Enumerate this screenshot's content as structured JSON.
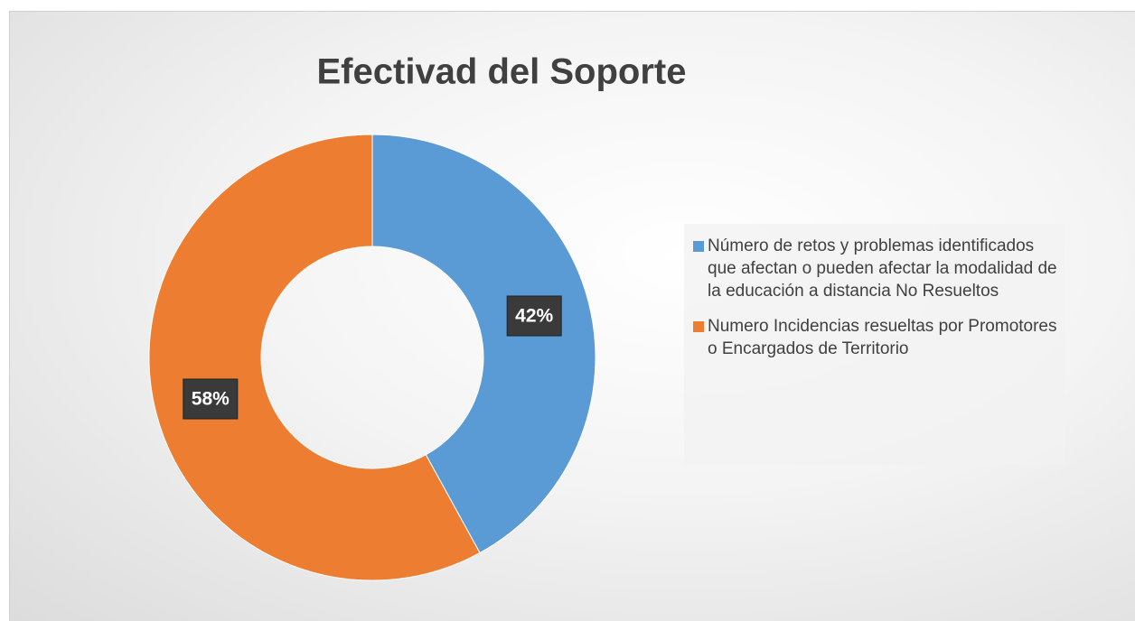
{
  "chart_data": {
    "type": "donut",
    "title": "Efectivad del Soporte",
    "categories": [
      "Número de retos y problemas identificados que afectan o pueden afectar la modalidad de la educación a distancia No Resueltos",
      "Numero Incidencias resueltas por Promotores o Encargados de Territorio"
    ],
    "values": [
      42,
      58
    ],
    "value_labels": [
      "42%",
      "58%"
    ],
    "colors": [
      "#5b9bd5",
      "#ed7d31"
    ],
    "legend": "right"
  }
}
